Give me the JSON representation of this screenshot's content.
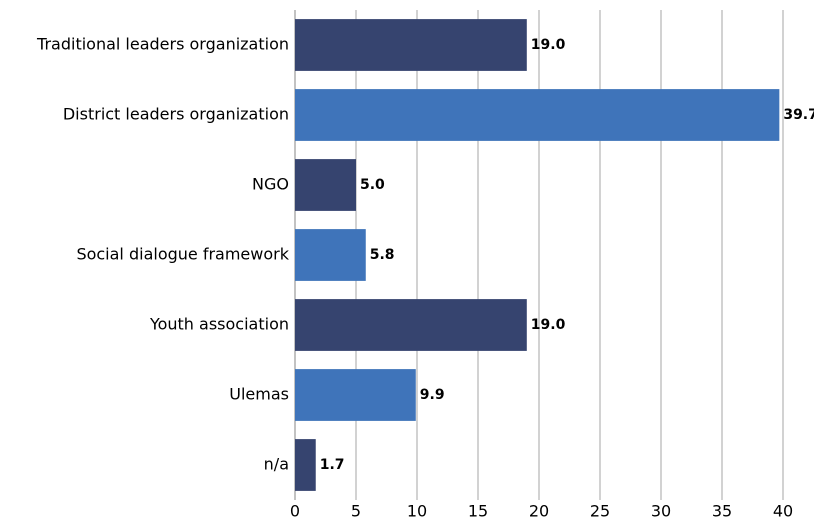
{
  "chart_data": {
    "type": "hbar",
    "categories": [
      "Traditional leaders organization",
      "District leaders organization",
      "NGO",
      "Social dialogue framework",
      "Youth association",
      "Ulemas",
      "n/a"
    ],
    "values": [
      19.0,
      39.7,
      5.0,
      5.8,
      19.0,
      9.9,
      1.7
    ],
    "value_labels": [
      "19.0",
      "39.7",
      "5.0",
      "5.8",
      "19.0",
      "9.9",
      "1.7"
    ],
    "colors": [
      "#36446f",
      "#3f74ba",
      "#36446f",
      "#3f74ba",
      "#36446f",
      "#3f74ba",
      "#36446f"
    ],
    "xlim": [
      0,
      40
    ],
    "xticks": [
      0,
      5,
      10,
      15,
      20,
      25,
      30,
      35,
      40
    ],
    "grid": true
  }
}
